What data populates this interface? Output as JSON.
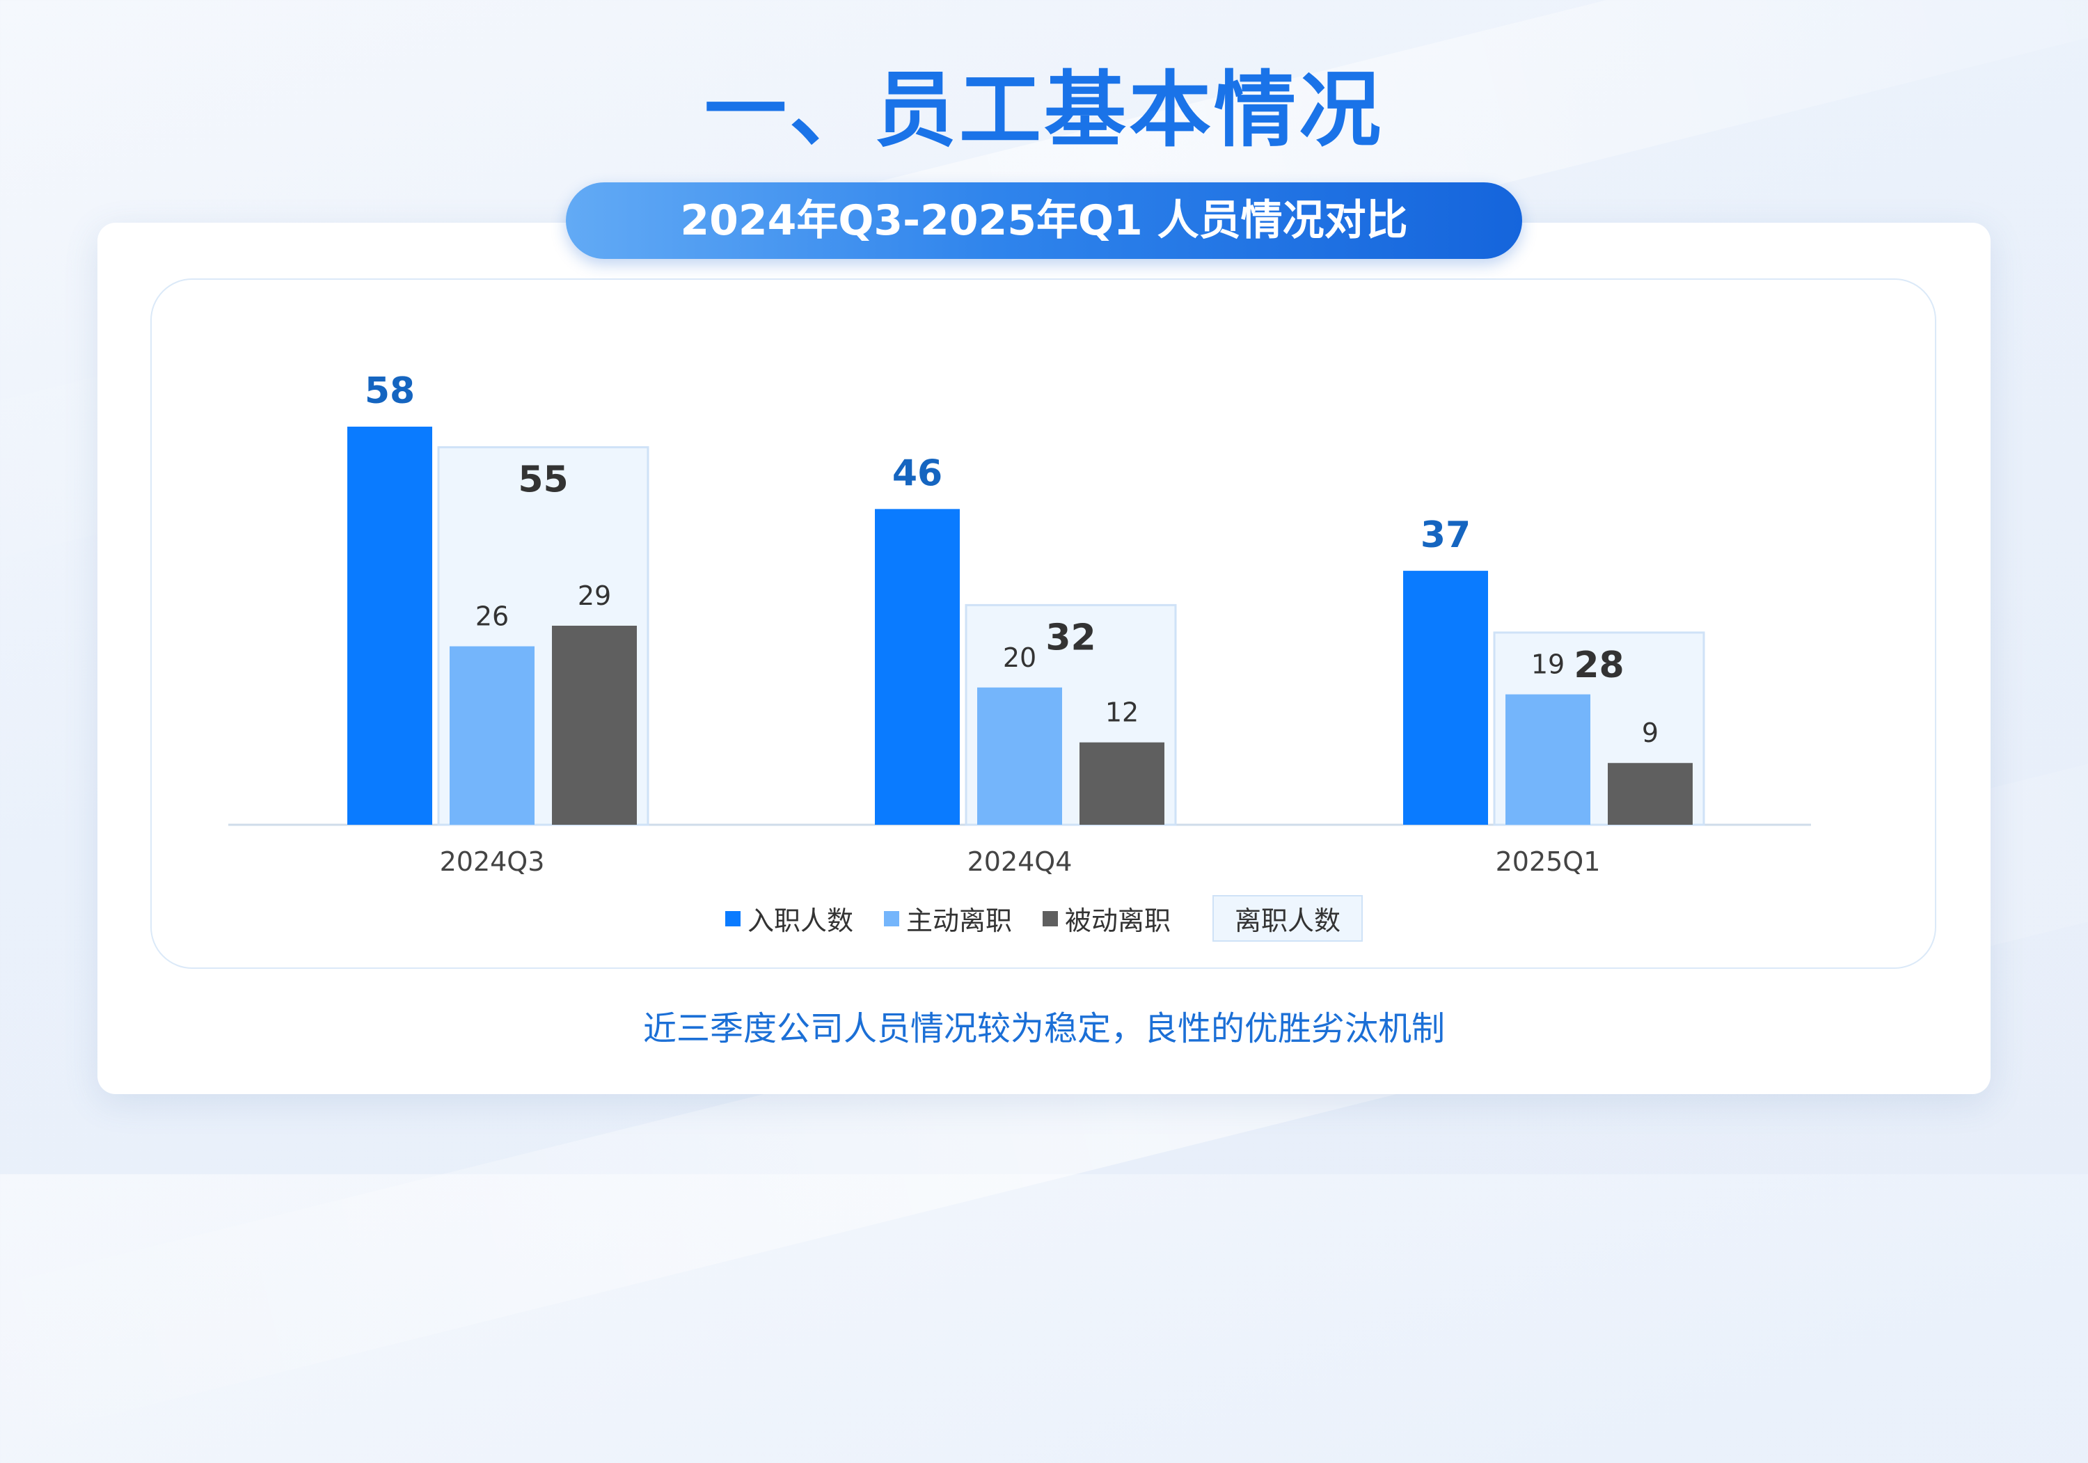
{
  "page": {
    "title": "一、员工基本情况",
    "subtitle": "2024年Q3-2025年Q1 人员情况对比",
    "summary": "近三季度公司人员情况较为稳定，良性的优胜劣汰机制"
  },
  "colors": {
    "hire": "#0a7bff",
    "voluntary": "#74b5fb",
    "involuntary": "#5f5f5f",
    "total_box_fill": "#eef6fe",
    "total_box_stroke": "#cfe2f7",
    "hire_label": "#1565c0",
    "total_label": "#333333"
  },
  "chart_data": {
    "type": "bar",
    "categories": [
      "2024Q3",
      "2024Q4",
      "2025Q1"
    ],
    "series": [
      {
        "name": "入职人数",
        "values": [
          58,
          46,
          37
        ]
      },
      {
        "name": "主动离职",
        "values": [
          26,
          20,
          19
        ]
      },
      {
        "name": "被动离职",
        "values": [
          29,
          12,
          9
        ]
      }
    ],
    "overlay": {
      "name": "离职人数",
      "values": [
        55,
        32,
        28
      ]
    },
    "ylim": [
      0,
      58
    ],
    "grid": false,
    "legend": "bottom"
  }
}
